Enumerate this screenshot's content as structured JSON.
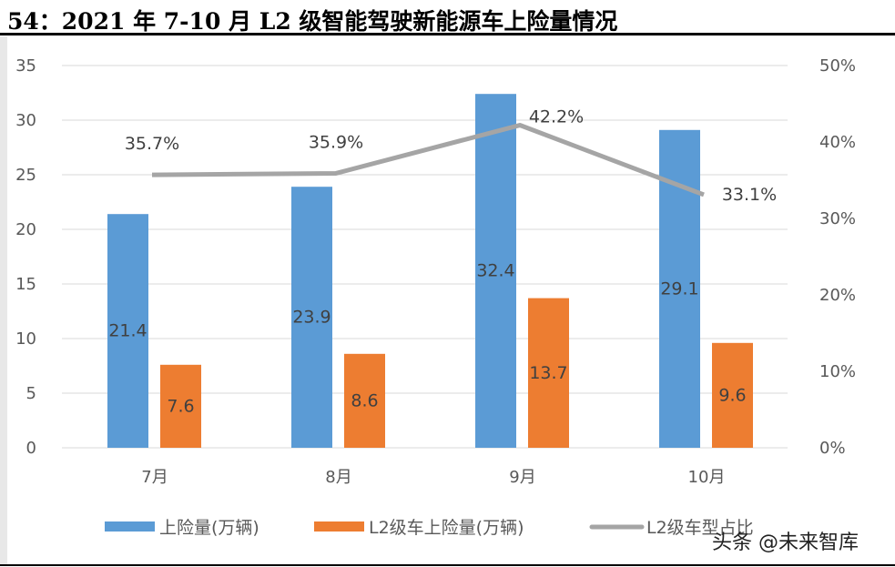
{
  "title": "54：2021 年 7-10 月 L2 级智能驾驶新能源车上险量情况",
  "watermark": "头条 @未来智库",
  "chart_data": {
    "type": "bar+line",
    "categories": [
      "7月",
      "8月",
      "9月",
      "10月"
    ],
    "series": [
      {
        "name": "上险量(万辆)",
        "type": "bar",
        "axis": "left",
        "color": "#5B9BD5",
        "values": [
          21.4,
          23.9,
          32.4,
          29.1
        ],
        "labels": [
          "21.4",
          "23.9",
          "32.4",
          "29.1"
        ]
      },
      {
        "name": "L2级车上险量(万辆)",
        "type": "bar",
        "axis": "left",
        "color": "#ED7D31",
        "values": [
          7.6,
          8.6,
          13.7,
          9.6
        ],
        "labels": [
          "7.6",
          "8.6",
          "13.7",
          "9.6"
        ]
      },
      {
        "name": "L2级车型占比",
        "type": "line",
        "axis": "right",
        "color": "#A5A5A5",
        "values": [
          35.7,
          35.9,
          42.2,
          33.1
        ],
        "labels": [
          "35.7%",
          "35.9%",
          "42.2%",
          "33.1%"
        ]
      }
    ],
    "left_axis": {
      "ylim": [
        0,
        35
      ],
      "ticks": [
        "0",
        "5",
        "10",
        "15",
        "20",
        "25",
        "30",
        "35"
      ]
    },
    "right_axis": {
      "ylim": [
        0,
        50
      ],
      "ticks": [
        "0%",
        "10%",
        "20%",
        "30%",
        "40%",
        "50%"
      ]
    },
    "grid": true,
    "legend": "bottom"
  }
}
